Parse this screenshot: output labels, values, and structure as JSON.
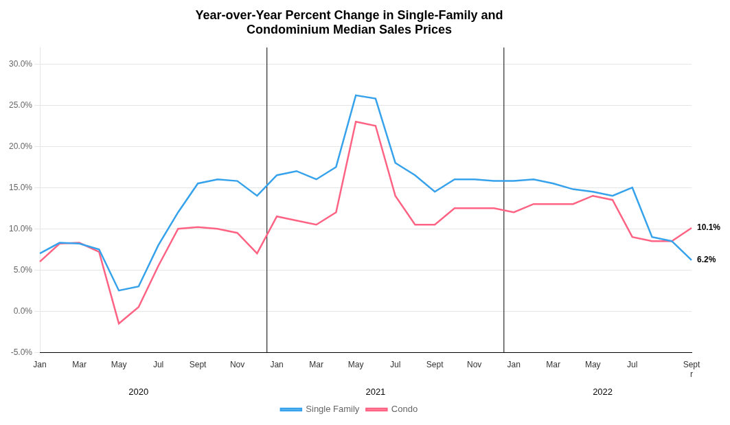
{
  "chart_data": {
    "type": "line",
    "title": "Year-over-Year Percent Change in Single-Family and\nCondominium Median Sales Prices",
    "categories": [
      "Jan",
      null,
      "Mar",
      null,
      "May",
      null,
      "Jul",
      null,
      "Sept",
      null,
      "Nov",
      null,
      "Jan",
      null,
      "Mar",
      null,
      "May",
      null,
      "Jul",
      null,
      "Sept",
      null,
      "Nov",
      null,
      "Jan",
      null,
      "Mar",
      null,
      "May",
      null,
      "Jul",
      null,
      null,
      "Sept\nr"
    ],
    "series": [
      {
        "name": "Single Family",
        "values": [
          7.0,
          8.3,
          8.2,
          7.5,
          2.5,
          3.0,
          8.0,
          12.0,
          15.5,
          16.0,
          15.8,
          14.0,
          16.5,
          17.0,
          16.0,
          17.5,
          26.2,
          25.8,
          18.0,
          16.5,
          14.5,
          16.0,
          16.0,
          15.8,
          15.8,
          16.0,
          15.5,
          14.8,
          14.5,
          14.0,
          15.0,
          9.0,
          8.5,
          6.2
        ]
      },
      {
        "name": "Condo",
        "values": [
          6.0,
          8.2,
          8.3,
          7.2,
          -1.5,
          0.5,
          5.5,
          10.0,
          10.2,
          10.0,
          9.5,
          7.0,
          11.5,
          11.0,
          10.5,
          12.0,
          23.0,
          22.5,
          14.0,
          10.5,
          10.5,
          12.5,
          12.5,
          12.5,
          12.0,
          13.0,
          13.0,
          13.0,
          14.0,
          13.5,
          9.0,
          8.5,
          8.5,
          10.1
        ]
      }
    ],
    "ylim": [
      -5.0,
      32.0
    ],
    "yticks": [
      {
        "value": -5.0,
        "label": "-5.0%"
      },
      {
        "value": 0.0,
        "label": "0.0%"
      },
      {
        "value": 5.0,
        "label": "5.0%"
      },
      {
        "value": 10.0,
        "label": "10.0%"
      },
      {
        "value": 15.0,
        "label": "15.0%"
      },
      {
        "value": 20.0,
        "label": "20.0%"
      },
      {
        "value": 25.0,
        "label": "25.0%"
      },
      {
        "value": 30.0,
        "label": "30.0%"
      }
    ],
    "grid": true,
    "legend": "bottom",
    "dividers": [
      11.5,
      23.5
    ],
    "annotations": [
      {
        "text": "2020",
        "x": 5
      },
      {
        "text": "2021",
        "x": 17
      },
      {
        "text": "2022",
        "x": 28.5
      },
      {
        "text": "10.1%",
        "x": 33,
        "y": 10.1
      },
      {
        "text": "6.2%",
        "x": 33,
        "y": 6.2
      }
    ]
  }
}
